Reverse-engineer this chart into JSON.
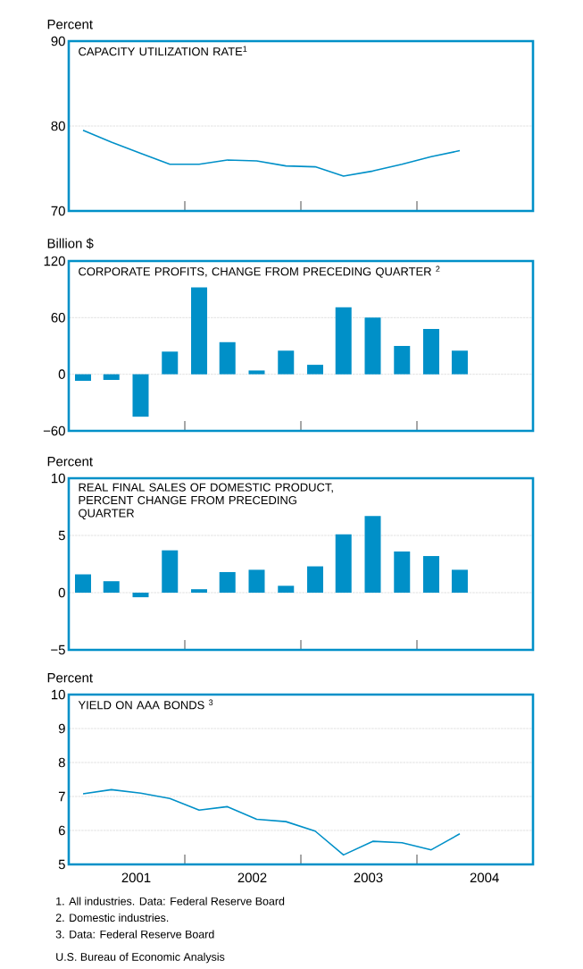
{
  "chart_data": [
    {
      "type": "line",
      "title": "CAPACITY UTILIZATION RATE$^{1}$",
      "ylabel": "Percent",
      "color": "#0090c8",
      "x": [
        "2001-02-15",
        "2001-05-15",
        "2001-08-15",
        "2001-11-15",
        "2002-02-15",
        "2002-05-15",
        "2002-08-15",
        "2002-11-15",
        "2003-02-15",
        "2003-05-15",
        "2003-08-15",
        "2003-11-15",
        "2004-02-15",
        "2004-05-15"
      ],
      "values": [
        79.5,
        78.1,
        76.8,
        75.5,
        75.5,
        76.0,
        75.9,
        75.3,
        75.2,
        74.1,
        74.7,
        75.5,
        76.4,
        77.1
      ],
      "xlim": [
        "2001-01-01",
        "2005-01-01"
      ],
      "xticks": [
        {
          "value": "2002-01-01",
          "label": null
        },
        {
          "value": "2003-01-01",
          "label": null
        },
        {
          "value": "2004-01-01",
          "label": null
        }
      ],
      "ylim": [
        70,
        90
      ],
      "yticks": [
        70,
        80,
        90
      ],
      "grid": "y",
      "tick_labels": "y"
    },
    {
      "type": "bar",
      "title": "CORPORATE PROFITS, CHANGE FROM PRECEDING QUARTER $^{2}$",
      "ylabel": "Billion $",
      "color": "#0090c8",
      "x": [
        "2001-02-15",
        "2001-05-15",
        "2001-08-15",
        "2001-11-15",
        "2002-02-15",
        "2002-05-15",
        "2002-08-15",
        "2002-11-15",
        "2003-02-15",
        "2003-05-15",
        "2003-08-15",
        "2003-11-15",
        "2004-02-15",
        "2004-05-15"
      ],
      "values": [
        -7,
        -6,
        -45,
        24,
        92,
        34,
        4,
        25,
        10,
        71,
        60,
        30,
        48,
        25
      ],
      "xlim": [
        "2001-01-01",
        "2005-01-01"
      ],
      "xticks": [
        {
          "value": "2002-01-01",
          "label": null
        },
        {
          "value": "2003-01-01",
          "label": null
        },
        {
          "value": "2004-01-01",
          "label": null
        }
      ],
      "ylim": [
        -60,
        120
      ],
      "yticks": [
        {
          "value": -60,
          "label": "−60"
        },
        0,
        60,
        120
      ],
      "grid": "y",
      "tick_labels": "y"
    },
    {
      "type": "bar",
      "title": "REAL FINAL SALES OF DOMESTIC PRODUCT, PERCENT CHANGE FROM PRECEDING QUARTER",
      "ylabel": "Percent",
      "color": "#0090c8",
      "x": [
        "2001-02-15",
        "2001-05-15",
        "2001-08-15",
        "2001-11-15",
        "2002-02-15",
        "2002-05-15",
        "2002-08-15",
        "2002-11-15",
        "2003-02-15",
        "2003-05-15",
        "2003-08-15",
        "2003-11-15",
        "2004-02-15",
        "2004-05-15"
      ],
      "values": [
        1.6,
        1.0,
        -0.4,
        3.7,
        0.3,
        1.8,
        2.0,
        0.6,
        2.3,
        5.1,
        6.7,
        3.6,
        3.2,
        2.0
      ],
      "xlim": [
        "2001-01-01",
        "2005-01-01"
      ],
      "xticks": [
        {
          "value": "2002-01-01",
          "label": null
        },
        {
          "value": "2003-01-01",
          "label": null
        },
        {
          "value": "2004-01-01",
          "label": null
        }
      ],
      "ylim": [
        -5,
        10
      ],
      "yticks": [
        {
          "value": -5,
          "label": "−5"
        },
        0,
        5,
        10
      ],
      "grid": "y",
      "tick_labels": "y"
    },
    {
      "type": "line",
      "title": "YIELD ON AAA BONDS $^{3}$",
      "ylabel": "Percent",
      "color": "#0090c8",
      "x": [
        "2001-02-15",
        "2001-05-15",
        "2001-08-15",
        "2001-11-15",
        "2002-02-15",
        "2002-05-15",
        "2002-08-15",
        "2002-11-15",
        "2003-02-15",
        "2003-05-15",
        "2003-08-15",
        "2003-11-15",
        "2004-02-15",
        "2004-05-15"
      ],
      "values": [
        7.08,
        7.2,
        7.1,
        6.94,
        6.6,
        6.7,
        6.33,
        6.26,
        5.98,
        5.28,
        5.68,
        5.64,
        5.43,
        5.9
      ],
      "xlim": [
        "2001-01-01",
        "2005-01-01"
      ],
      "xticks": [
        {
          "value": "2002-01-01",
          "label": null
        },
        {
          "value": "2003-01-01",
          "label": null
        },
        {
          "value": "2004-01-01",
          "label": null
        },
        {
          "value": "2001-08-01",
          "label": "2001"
        },
        {
          "value": "2002-08-01",
          "label": "2002"
        },
        {
          "value": "2003-08-01",
          "label": "2003"
        },
        {
          "value": "2004-08-01",
          "label": "2004"
        }
      ],
      "ylim": [
        5,
        10
      ],
      "yticks": [
        5,
        6,
        7,
        8,
        9,
        10
      ],
      "grid": "y",
      "annotations": [
        "1. All industries. Data: Federal Reserve Board",
        "2. Domestic industries.",
        "3. Data: Federal Reserve Board",
        "U.S. Bureau of Economic Analysis"
      ]
    }
  ]
}
